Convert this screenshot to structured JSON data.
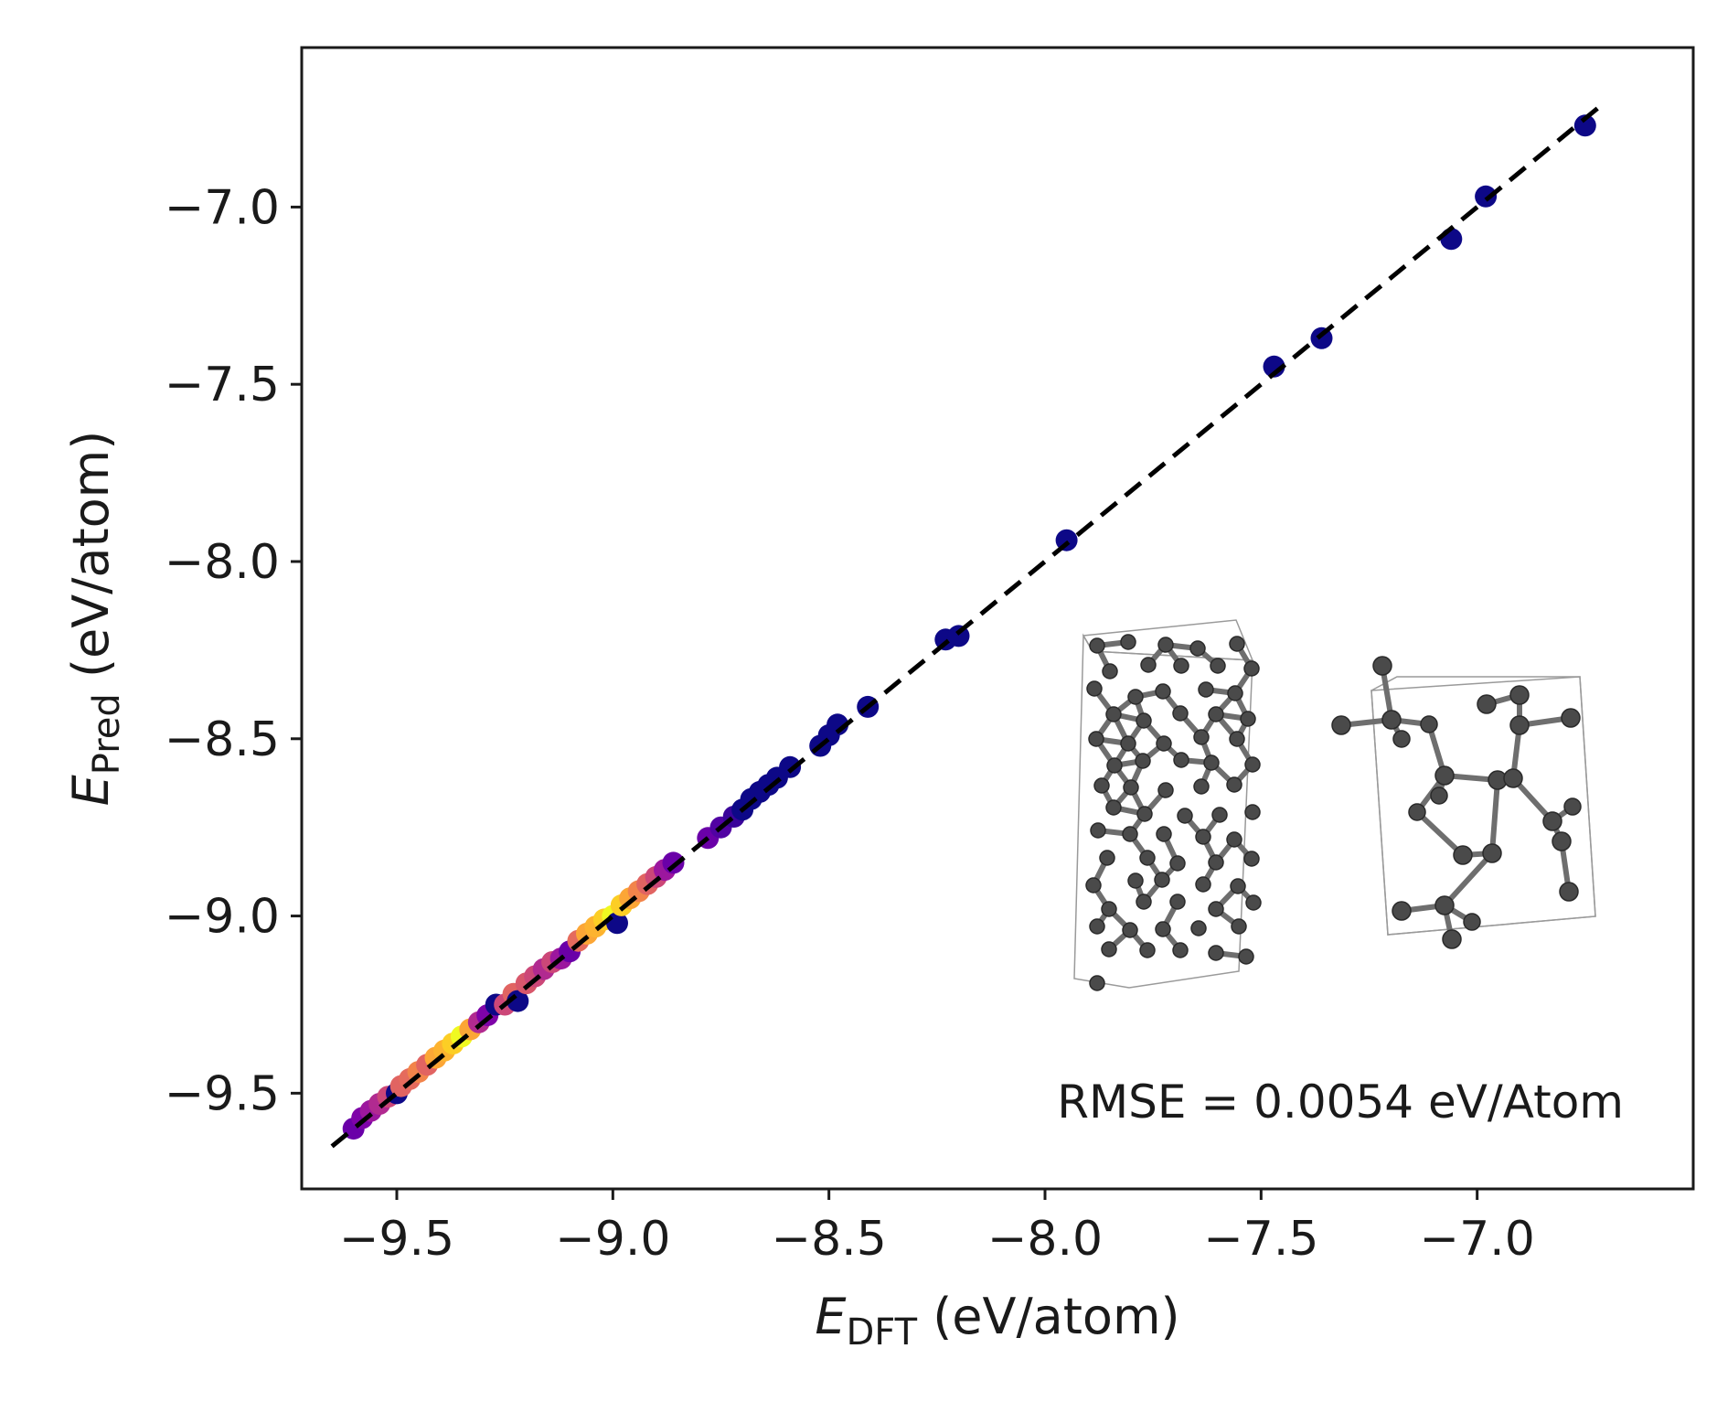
{
  "chart_data": {
    "type": "scatter",
    "xlabel": {
      "symbol": "E",
      "subscript": "DFT",
      "unit": " (eV/atom)"
    },
    "ylabel": {
      "symbol": "E",
      "subscript": "Pred",
      "unit": " (eV/atom)"
    },
    "xlim": [
      -9.72,
      -6.5
    ],
    "ylim": [
      -9.77,
      -6.55
    ],
    "xticks": [
      -9.5,
      -9.0,
      -8.5,
      -8.0,
      -7.5,
      -7.0
    ],
    "xtick_labels": [
      "−9.5",
      "−9.0",
      "−8.5",
      "−8.0",
      "−7.5",
      "−7.0"
    ],
    "yticks": [
      -9.5,
      -9.0,
      -8.5,
      -8.0,
      -7.5,
      -7.0
    ],
    "ytick_labels": [
      "−9.5",
      "−9.0",
      "−8.5",
      "−8.0",
      "−7.5",
      "−7.0"
    ],
    "reference_line": {
      "style": "dashed",
      "color": "#000000",
      "from": [
        -9.65,
        -9.65
      ],
      "to": [
        -6.72,
        -6.72
      ]
    },
    "annotation": "RMSE = 0.0054 eV/Atom",
    "colormap": "plasma (point density)",
    "series": [
      {
        "name": "density-colored points",
        "points": [
          {
            "x": -9.6,
            "y": -9.6,
            "c": "#6a00a8"
          },
          {
            "x": -9.58,
            "y": -9.57,
            "c": "#7e03a8"
          },
          {
            "x": -9.56,
            "y": -9.55,
            "c": "#9c179e"
          },
          {
            "x": -9.54,
            "y": -9.53,
            "c": "#b12a90"
          },
          {
            "x": -9.52,
            "y": -9.51,
            "c": "#cc4778"
          },
          {
            "x": -9.5,
            "y": -9.5,
            "c": "#0d0887"
          },
          {
            "x": -9.49,
            "y": -9.48,
            "c": "#e16462"
          },
          {
            "x": -9.47,
            "y": -9.46,
            "c": "#e56b5d"
          },
          {
            "x": -9.45,
            "y": -9.44,
            "c": "#f2844b"
          },
          {
            "x": -9.43,
            "y": -9.42,
            "c": "#e16462"
          },
          {
            "x": -9.41,
            "y": -9.4,
            "c": "#fca636"
          },
          {
            "x": -9.39,
            "y": -9.38,
            "c": "#fdb32f"
          },
          {
            "x": -9.37,
            "y": -9.36,
            "c": "#fcce25"
          },
          {
            "x": -9.35,
            "y": -9.34,
            "c": "#f0f921"
          },
          {
            "x": -9.33,
            "y": -9.32,
            "c": "#fca636"
          },
          {
            "x": -9.31,
            "y": -9.3,
            "c": "#b12a90"
          },
          {
            "x": -9.29,
            "y": -9.28,
            "c": "#7e03a8"
          },
          {
            "x": -9.27,
            "y": -9.25,
            "c": "#0d0887"
          },
          {
            "x": -9.25,
            "y": -9.25,
            "c": "#cc4778"
          },
          {
            "x": -9.23,
            "y": -9.22,
            "c": "#e16462"
          },
          {
            "x": -9.22,
            "y": -9.24,
            "c": "#0d0887"
          },
          {
            "x": -9.2,
            "y": -9.19,
            "c": "#d8576b"
          },
          {
            "x": -9.18,
            "y": -9.17,
            "c": "#cc4778"
          },
          {
            "x": -9.16,
            "y": -9.15,
            "c": "#b12a90"
          },
          {
            "x": -9.14,
            "y": -9.13,
            "c": "#cc4778"
          },
          {
            "x": -9.12,
            "y": -9.12,
            "c": "#9c179e"
          },
          {
            "x": -9.1,
            "y": -9.1,
            "c": "#6a00a8"
          },
          {
            "x": -9.08,
            "y": -9.07,
            "c": "#e56b5d"
          },
          {
            "x": -9.06,
            "y": -9.05,
            "c": "#fca636"
          },
          {
            "x": -9.04,
            "y": -9.03,
            "c": "#fdb32f"
          },
          {
            "x": -9.02,
            "y": -9.01,
            "c": "#fcce25"
          },
          {
            "x": -9.0,
            "y": -9.0,
            "c": "#f0f921"
          },
          {
            "x": -8.99,
            "y": -9.02,
            "c": "#0d0887"
          },
          {
            "x": -8.98,
            "y": -8.97,
            "c": "#fcce25"
          },
          {
            "x": -8.96,
            "y": -8.95,
            "c": "#fca636"
          },
          {
            "x": -8.94,
            "y": -8.93,
            "c": "#f2844b"
          },
          {
            "x": -8.92,
            "y": -8.91,
            "c": "#e16462"
          },
          {
            "x": -8.9,
            "y": -8.89,
            "c": "#cc4778"
          },
          {
            "x": -8.88,
            "y": -8.87,
            "c": "#9c179e"
          },
          {
            "x": -8.86,
            "y": -8.85,
            "c": "#6a00a8"
          },
          {
            "x": -8.78,
            "y": -8.78,
            "c": "#6a00a8"
          },
          {
            "x": -8.75,
            "y": -8.75,
            "c": "#5102a3"
          },
          {
            "x": -8.72,
            "y": -8.72,
            "c": "#3a049a"
          },
          {
            "x": -8.7,
            "y": -8.7,
            "c": "#0d0887"
          },
          {
            "x": -8.68,
            "y": -8.67,
            "c": "#0d0887"
          },
          {
            "x": -8.66,
            "y": -8.65,
            "c": "#0d0887"
          },
          {
            "x": -8.64,
            "y": -8.63,
            "c": "#0d0887"
          },
          {
            "x": -8.62,
            "y": -8.61,
            "c": "#0d0887"
          },
          {
            "x": -8.59,
            "y": -8.58,
            "c": "#0d0887"
          },
          {
            "x": -8.52,
            "y": -8.52,
            "c": "#0d0887"
          },
          {
            "x": -8.5,
            "y": -8.49,
            "c": "#0d0887"
          },
          {
            "x": -8.48,
            "y": -8.46,
            "c": "#0d0887"
          },
          {
            "x": -8.41,
            "y": -8.41,
            "c": "#0d0887"
          },
          {
            "x": -8.23,
            "y": -8.22,
            "c": "#0d0887"
          },
          {
            "x": -8.2,
            "y": -8.21,
            "c": "#0d0887"
          },
          {
            "x": -7.95,
            "y": -7.94,
            "c": "#0d0887"
          },
          {
            "x": -7.47,
            "y": -7.45,
            "c": "#0d0887"
          },
          {
            "x": -7.36,
            "y": -7.37,
            "c": "#0d0887"
          },
          {
            "x": -7.06,
            "y": -7.09,
            "c": "#0d0887"
          },
          {
            "x": -6.98,
            "y": -6.97,
            "c": "#0d0887"
          },
          {
            "x": -6.75,
            "y": -6.77,
            "c": "#0d0887"
          }
        ]
      }
    ]
  }
}
